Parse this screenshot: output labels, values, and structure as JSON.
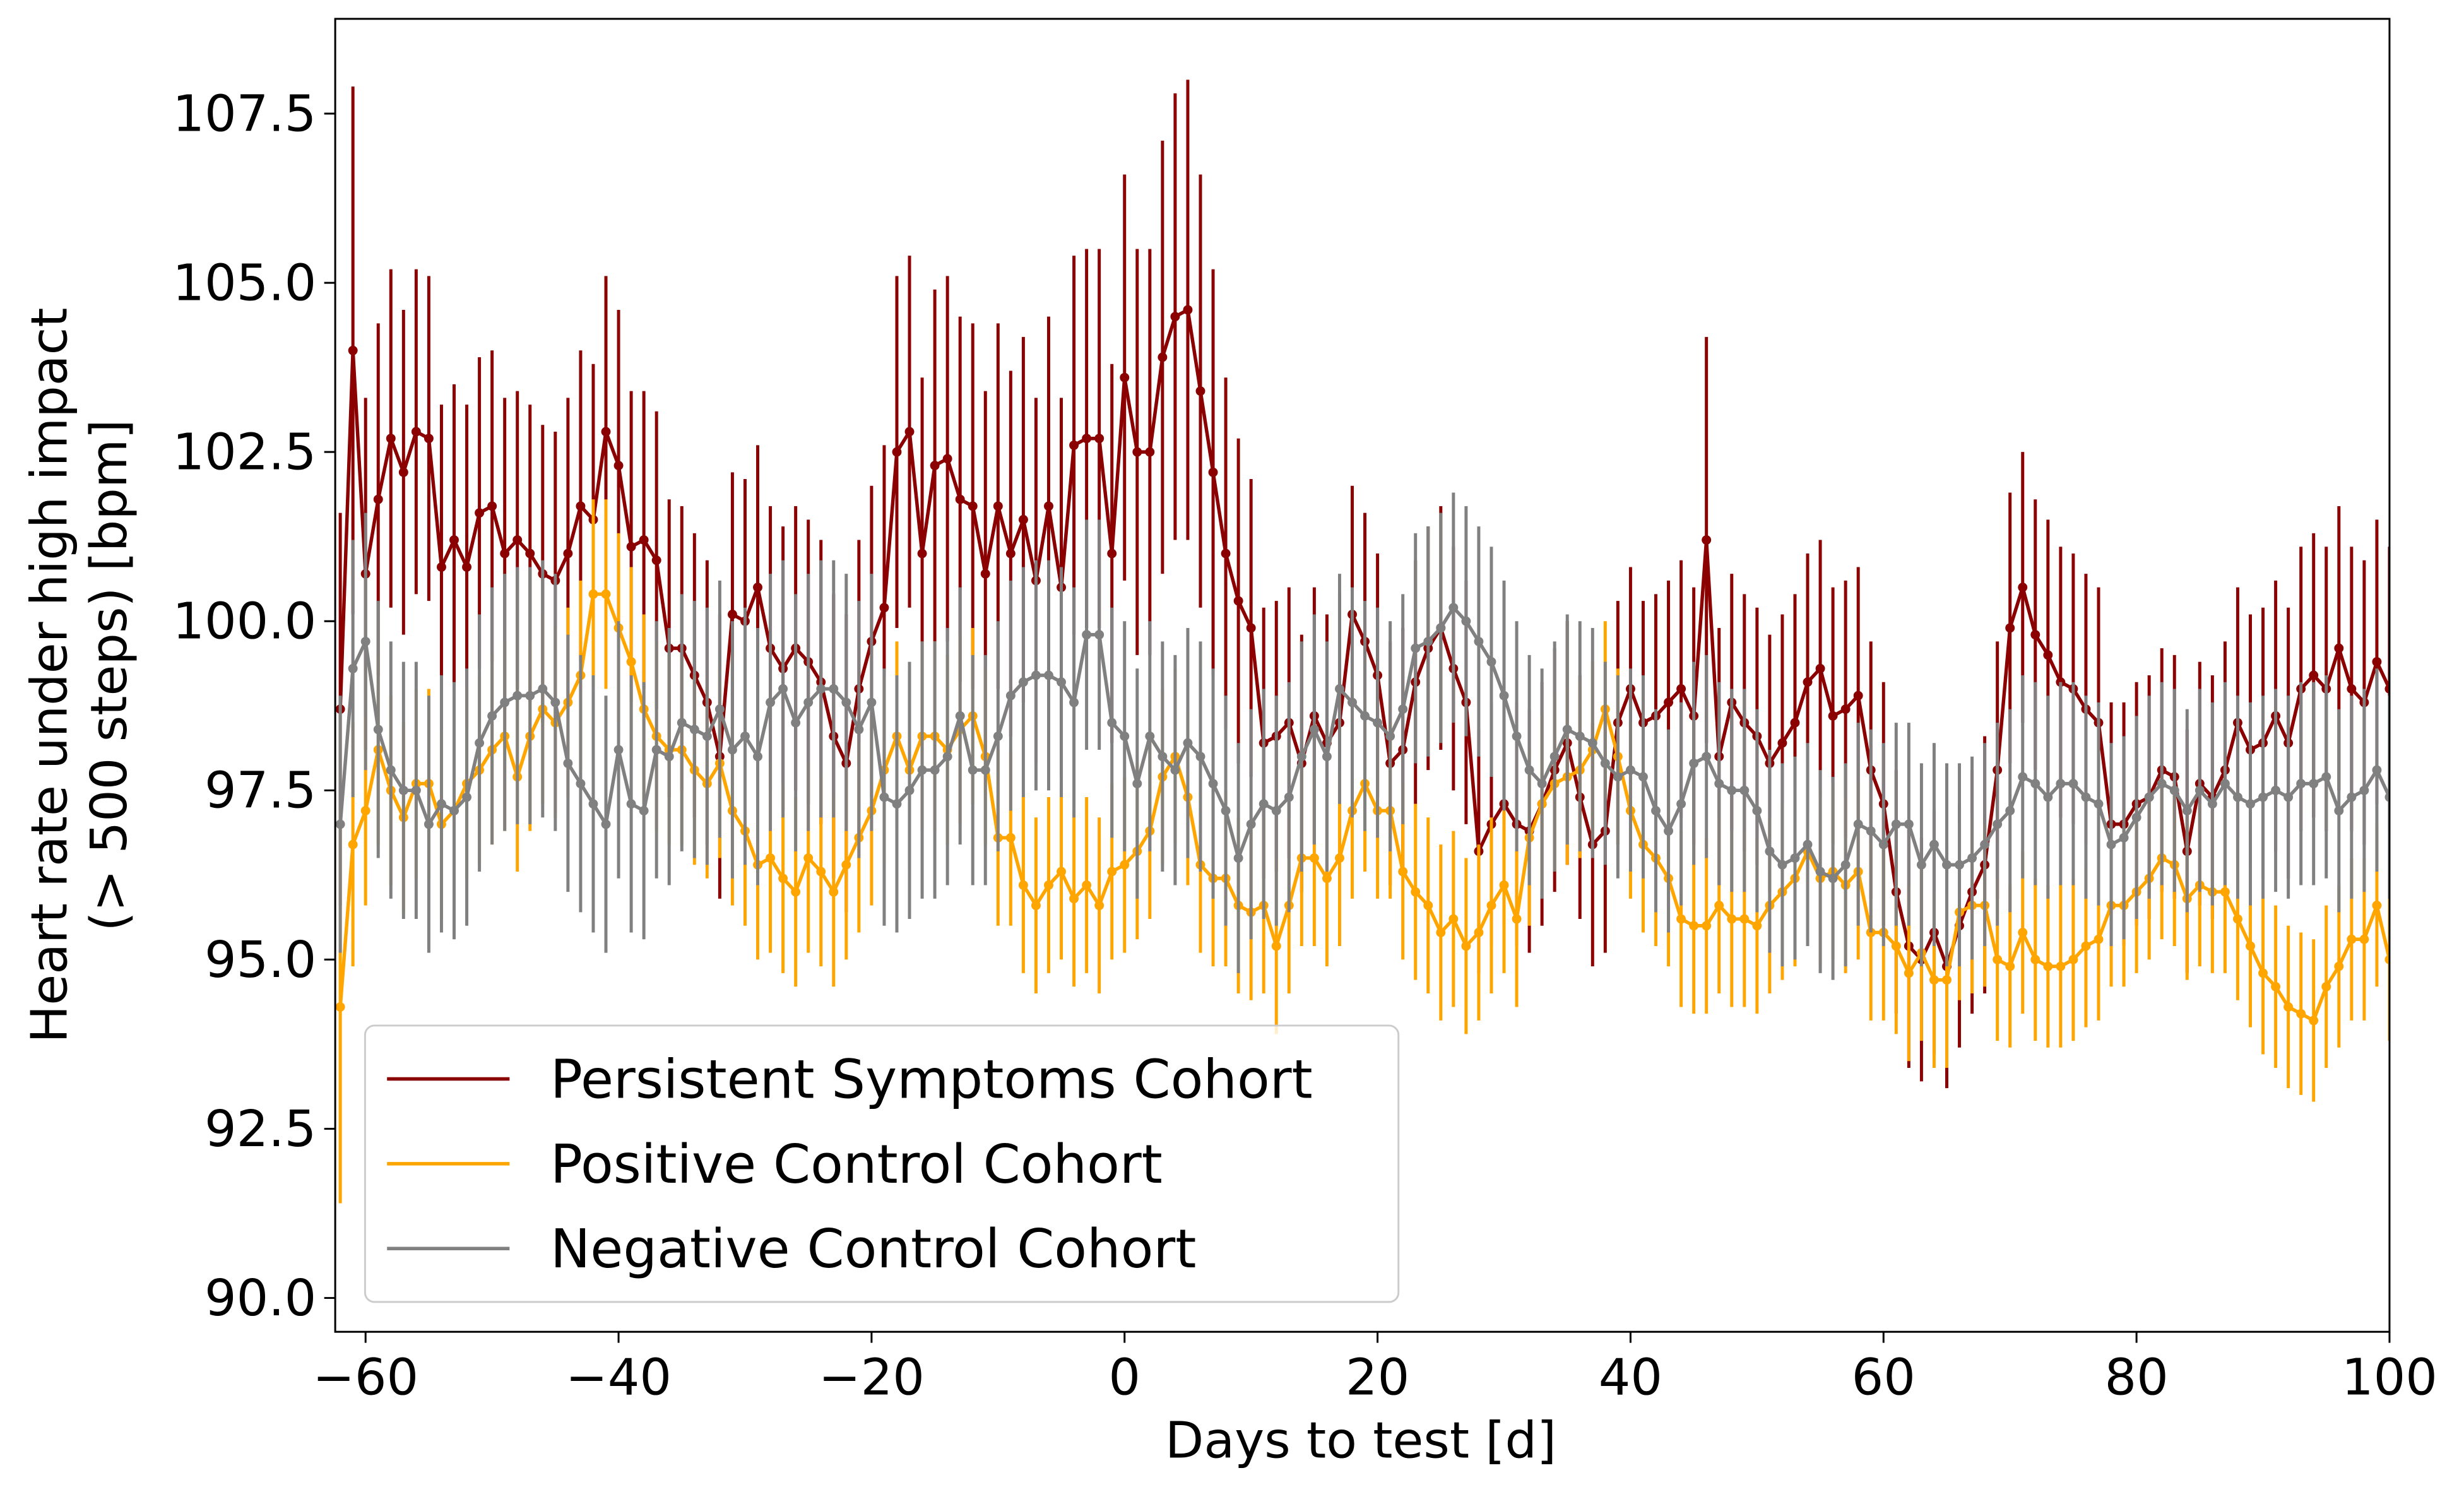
{
  "chart_data": {
    "type": "errorbar-line",
    "xlabel": "Days to test [d]",
    "ylabel": [
      "Heart rate under high impact",
      "(> 500 steps) [bpm]"
    ],
    "xlim": [
      -62.4,
      100
    ],
    "ylim": [
      89.5,
      108.9
    ],
    "xticks": [
      {
        "value": -60,
        "label": "−60"
      },
      {
        "value": -40,
        "label": "−40"
      },
      {
        "value": -20,
        "label": "−20"
      },
      0,
      20,
      40,
      60,
      80,
      100
    ],
    "yticks": [
      {
        "value": 90,
        "label": "90.0"
      },
      92.5,
      {
        "value": 95,
        "label": "95.0"
      },
      97.5,
      {
        "value": 100,
        "label": "100.0"
      },
      102.5,
      {
        "value": 105,
        "label": "105.0"
      },
      107.5
    ],
    "legend": "lower left",
    "x": [
      -62,
      -61,
      -60,
      -59,
      -58,
      -57,
      -56,
      -55,
      -54,
      -53,
      -52,
      -51,
      -50,
      -49,
      -48,
      -47,
      -46,
      -45,
      -44,
      -43,
      -42,
      -41,
      -40,
      -39,
      -38,
      -37,
      -36,
      -35,
      -34,
      -33,
      -32,
      -31,
      -30,
      -29,
      -28,
      -27,
      -26,
      -25,
      -24,
      -23,
      -22,
      -21,
      -20,
      -19,
      -18,
      -17,
      -16,
      -15,
      -14,
      -13,
      -12,
      -11,
      -10,
      -9,
      -8,
      -7,
      -6,
      -5,
      -4,
      -3,
      -2,
      -1,
      0,
      1,
      2,
      3,
      4,
      5,
      6,
      7,
      8,
      9,
      10,
      11,
      12,
      13,
      14,
      15,
      16,
      17,
      18,
      19,
      20,
      21,
      22,
      23,
      24,
      25,
      26,
      27,
      28,
      29,
      30,
      31,
      32,
      33,
      34,
      35,
      36,
      37,
      38,
      39,
      40,
      41,
      42,
      43,
      44,
      45,
      46,
      47,
      48,
      49,
      50,
      51,
      52,
      53,
      54,
      55,
      56,
      57,
      58,
      59,
      60,
      61,
      62,
      63,
      64,
      65,
      66,
      67,
      68,
      69,
      70,
      71,
      72,
      73,
      74,
      75,
      76,
      77,
      78,
      79,
      80,
      81,
      82,
      83,
      84,
      85,
      86,
      87,
      88,
      89,
      90,
      91,
      92,
      93,
      94,
      95,
      96,
      97,
      98,
      99,
      100
    ],
    "series": [
      {
        "name": "Persistent Symptoms Cohort",
        "color": "#8b0000",
        "values": [
          98.7,
          104.0,
          100.7,
          101.8,
          102.7,
          102.2,
          102.8,
          102.7,
          100.8,
          101.2,
          100.8,
          101.6,
          101.7,
          101.0,
          101.2,
          101.0,
          100.7,
          100.6,
          101.0,
          101.7,
          101.5,
          102.8,
          102.3,
          101.1,
          101.2,
          100.9,
          99.6,
          99.6,
          99.2,
          98.8,
          98.0,
          100.1,
          100.0,
          100.5,
          99.6,
          99.3,
          99.6,
          99.4,
          99.1,
          98.3,
          97.9,
          99.0,
          99.7,
          100.2,
          102.5,
          102.8,
          101.0,
          102.3,
          102.4,
          101.8,
          101.7,
          100.7,
          101.7,
          101.0,
          101.5,
          100.6,
          101.7,
          100.5,
          102.6,
          102.7,
          102.7,
          101.0,
          103.6,
          102.5,
          102.5,
          103.9,
          104.5,
          104.6,
          103.4,
          102.2,
          101.0,
          100.3,
          99.9,
          98.2,
          98.3,
          98.5,
          97.9,
          98.6,
          98.2,
          98.5,
          100.1,
          99.7,
          99.2,
          97.9,
          98.1,
          99.1,
          99.6,
          99.9,
          99.3,
          98.8,
          96.6,
          97.0,
          97.3,
          97.0,
          96.9,
          97.3,
          97.8,
          98.2,
          97.4,
          96.7,
          96.9,
          98.5,
          99.0,
          98.5,
          98.6,
          98.8,
          99.0,
          98.6,
          101.2,
          98.0,
          98.8,
          98.5,
          98.3,
          97.9,
          98.2,
          98.5,
          99.1,
          99.3,
          98.6,
          98.7,
          98.9,
          97.8,
          97.3,
          96.0,
          95.2,
          95.0,
          95.4,
          94.9,
          95.5,
          96.0,
          96.4,
          97.8,
          99.9,
          100.5,
          99.8,
          99.5,
          99.1,
          99.0,
          98.7,
          98.5,
          97.0,
          97.0,
          97.3,
          97.4,
          97.8,
          97.7,
          96.6,
          97.6,
          97.4,
          97.8,
          98.5,
          98.1,
          98.2,
          98.6,
          98.2,
          99.0,
          99.2,
          99.0,
          99.6,
          99.0,
          98.8,
          99.4,
          99.0
        ],
        "errors": [
          2.9,
          3.9,
          2.6,
          2.6,
          2.5,
          2.4,
          2.4,
          2.4,
          2.4,
          2.3,
          2.4,
          2.3,
          2.3,
          2.3,
          2.2,
          2.2,
          2.2,
          2.2,
          2.3,
          2.3,
          2.3,
          2.3,
          2.3,
          2.3,
          2.2,
          2.2,
          2.2,
          2.1,
          2.1,
          2.1,
          2.1,
          2.1,
          2.1,
          2.1,
          2.1,
          2.1,
          2.1,
          2.1,
          2.1,
          2.1,
          2.2,
          2.2,
          2.3,
          2.4,
          2.6,
          2.6,
          2.6,
          2.6,
          2.7,
          2.7,
          2.7,
          2.7,
          2.7,
          2.7,
          2.7,
          2.7,
          2.8,
          2.8,
          2.8,
          2.8,
          2.8,
          2.8,
          3.0,
          3.0,
          3.0,
          3.2,
          3.3,
          3.4,
          3.2,
          3.0,
          2.6,
          2.4,
          2.2,
          2.0,
          2.0,
          2.0,
          1.9,
          1.9,
          1.9,
          1.9,
          1.9,
          1.9,
          1.8,
          1.8,
          1.8,
          1.8,
          1.8,
          1.8,
          1.8,
          1.8,
          1.8,
          1.8,
          1.8,
          1.8,
          1.8,
          1.8,
          1.8,
          1.8,
          1.8,
          1.8,
          1.8,
          1.8,
          1.8,
          1.8,
          1.8,
          1.8,
          1.9,
          1.9,
          3.0,
          1.9,
          1.9,
          1.9,
          1.9,
          1.9,
          1.9,
          1.9,
          1.9,
          1.9,
          1.9,
          1.9,
          1.9,
          1.9,
          1.8,
          1.8,
          1.8,
          1.8,
          1.8,
          1.8,
          1.8,
          1.8,
          1.9,
          1.9,
          2.0,
          2.0,
          2.0,
          2.0,
          2.0,
          2.0,
          2.0,
          2.0,
          1.8,
          1.8,
          1.8,
          1.8,
          1.8,
          1.8,
          1.8,
          1.8,
          1.8,
          1.9,
          2.0,
          2.0,
          2.0,
          2.0,
          2.0,
          2.1,
          2.1,
          2.1,
          2.1,
          2.1,
          2.1,
          2.1,
          2.1
        ]
      },
      {
        "name": "Positive Control Cohort",
        "color": "#ffa500",
        "values": [
          94.3,
          96.7,
          97.2,
          98.1,
          97.5,
          97.1,
          97.6,
          97.6,
          97.0,
          97.2,
          97.6,
          97.8,
          98.1,
          98.3,
          97.7,
          98.3,
          98.7,
          98.5,
          98.8,
          99.2,
          100.4,
          100.4,
          99.9,
          99.4,
          98.7,
          98.3,
          98.1,
          98.1,
          97.8,
          97.6,
          97.9,
          97.2,
          96.9,
          96.4,
          96.5,
          96.2,
          96.0,
          96.5,
          96.3,
          96.0,
          96.4,
          96.8,
          97.2,
          97.8,
          98.3,
          97.8,
          98.3,
          98.3,
          98.1,
          98.4,
          98.6,
          98.0,
          96.8,
          96.8,
          96.1,
          95.8,
          96.1,
          96.3,
          95.9,
          96.1,
          95.8,
          96.3,
          96.4,
          96.6,
          96.9,
          97.7,
          98.0,
          97.4,
          96.4,
          96.2,
          96.2,
          95.8,
          95.7,
          95.8,
          95.2,
          95.8,
          96.5,
          96.5,
          96.2,
          96.5,
          97.2,
          97.6,
          97.2,
          97.2,
          96.3,
          96.0,
          95.8,
          95.4,
          95.6,
          95.2,
          95.4,
          95.8,
          96.1,
          95.6,
          96.8,
          97.3,
          97.6,
          97.7,
          97.8,
          98.1,
          98.7,
          98.0,
          97.2,
          96.7,
          96.5,
          96.2,
          95.6,
          95.5,
          95.5,
          95.8,
          95.6,
          95.6,
          95.5,
          95.8,
          96.0,
          96.2,
          96.6,
          96.2,
          96.3,
          96.1,
          96.3,
          95.4,
          95.4,
          95.2,
          94.8,
          95.1,
          94.7,
          94.7,
          95.7,
          95.8,
          95.8,
          95.0,
          94.9,
          95.4,
          95.0,
          94.9,
          94.9,
          95.0,
          95.2,
          95.3,
          95.8,
          95.8,
          96.0,
          96.2,
          96.5,
          96.4,
          95.9,
          96.1,
          96.0,
          96.0,
          95.6,
          95.2,
          94.8,
          94.6,
          94.3,
          94.2,
          94.1,
          94.6,
          94.9,
          95.3,
          95.3,
          95.8,
          95.0
        ],
        "errors": [
          2.9,
          1.8,
          1.4,
          1.4,
          1.4,
          1.4,
          1.4,
          1.4,
          1.4,
          1.4,
          1.4,
          1.4,
          1.4,
          1.4,
          1.4,
          1.4,
          1.4,
          1.4,
          1.4,
          1.4,
          1.4,
          1.4,
          1.4,
          1.4,
          1.4,
          1.4,
          1.4,
          1.4,
          1.4,
          1.4,
          1.4,
          1.4,
          1.4,
          1.4,
          1.4,
          1.4,
          1.4,
          1.4,
          1.4,
          1.4,
          1.4,
          1.4,
          1.4,
          1.4,
          1.4,
          1.4,
          1.4,
          1.4,
          1.4,
          1.4,
          1.3,
          1.3,
          1.3,
          1.3,
          1.3,
          1.3,
          1.3,
          1.3,
          1.3,
          1.3,
          1.3,
          1.3,
          1.3,
          1.3,
          1.3,
          1.3,
          1.3,
          1.3,
          1.3,
          1.3,
          1.3,
          1.3,
          1.3,
          1.3,
          1.3,
          1.3,
          1.3,
          1.3,
          1.3,
          1.3,
          1.3,
          1.3,
          1.3,
          1.3,
          1.3,
          1.3,
          1.3,
          1.3,
          1.3,
          1.3,
          1.3,
          1.3,
          1.3,
          1.3,
          1.3,
          1.3,
          1.3,
          1.3,
          1.3,
          1.3,
          1.3,
          1.3,
          1.3,
          1.3,
          1.3,
          1.3,
          1.3,
          1.3,
          1.3,
          1.3,
          1.3,
          1.3,
          1.3,
          1.3,
          1.3,
          1.3,
          1.3,
          1.3,
          1.3,
          1.3,
          1.3,
          1.3,
          1.3,
          1.3,
          1.3,
          1.3,
          1.3,
          1.3,
          1.3,
          1.3,
          1.2,
          1.2,
          1.2,
          1.2,
          1.2,
          1.2,
          1.2,
          1.2,
          1.2,
          1.2,
          1.2,
          1.2,
          1.2,
          1.2,
          1.2,
          1.2,
          1.2,
          1.2,
          1.2,
          1.2,
          1.2,
          1.2,
          1.2,
          1.2,
          1.2,
          1.2,
          1.2,
          1.2,
          1.2,
          1.2,
          1.2,
          1.2,
          1.2
        ]
      },
      {
        "name": "Negative Control Cohort",
        "color": "#808080",
        "values": [
          97.0,
          99.3,
          99.7,
          98.4,
          97.8,
          97.5,
          97.5,
          97.0,
          97.3,
          97.2,
          97.4,
          98.2,
          98.6,
          98.8,
          98.9,
          98.9,
          99.0,
          98.8,
          97.9,
          97.6,
          97.3,
          97.0,
          98.1,
          97.3,
          97.2,
          98.1,
          98.0,
          98.5,
          98.4,
          98.3,
          98.7,
          98.1,
          98.3,
          98.0,
          98.8,
          99.0,
          98.5,
          98.8,
          99.0,
          99.0,
          98.8,
          98.4,
          98.8,
          97.4,
          97.3,
          97.5,
          97.8,
          97.8,
          98.0,
          98.6,
          97.8,
          97.8,
          98.3,
          98.9,
          99.1,
          99.2,
          99.2,
          99.1,
          98.8,
          99.8,
          99.8,
          98.5,
          98.3,
          97.6,
          98.3,
          98.0,
          97.8,
          98.2,
          98.0,
          97.6,
          97.2,
          96.5,
          97.0,
          97.3,
          97.2,
          97.4,
          98.0,
          98.4,
          98.0,
          99.0,
          98.8,
          98.6,
          98.5,
          98.3,
          98.7,
          99.6,
          99.7,
          99.9,
          100.2,
          100.0,
          99.7,
          99.4,
          98.9,
          98.3,
          97.8,
          97.6,
          98.0,
          98.4,
          98.3,
          98.2,
          97.9,
          97.7,
          97.8,
          97.7,
          97.2,
          96.9,
          97.3,
          97.9,
          98.0,
          97.6,
          97.5,
          97.5,
          97.2,
          96.6,
          96.4,
          96.5,
          96.7,
          96.3,
          96.2,
          96.4,
          97.0,
          96.9,
          96.7,
          97.0,
          97.0,
          96.4,
          96.7,
          96.4,
          96.4,
          96.5,
          96.7,
          97.0,
          97.2,
          97.7,
          97.6,
          97.4,
          97.6,
          97.6,
          97.4,
          97.3,
          96.7,
          96.8,
          97.1,
          97.4,
          97.6,
          97.5,
          97.2,
          97.5,
          97.3,
          97.6,
          97.4,
          97.3,
          97.4,
          97.5,
          97.4,
          97.6,
          97.6,
          97.7,
          97.2,
          97.4,
          97.5,
          97.8,
          97.4
        ],
        "errors": [
          1.9,
          1.9,
          1.9,
          1.9,
          1.9,
          1.9,
          1.9,
          1.9,
          1.9,
          1.9,
          1.9,
          1.9,
          1.9,
          1.9,
          1.9,
          1.9,
          1.9,
          1.9,
          1.9,
          1.9,
          1.9,
          1.9,
          1.9,
          1.9,
          1.9,
          1.9,
          1.9,
          1.9,
          1.9,
          1.9,
          1.9,
          1.9,
          1.9,
          1.9,
          1.9,
          1.9,
          1.9,
          1.9,
          1.9,
          1.9,
          1.9,
          1.9,
          1.9,
          1.9,
          1.9,
          1.9,
          1.9,
          1.9,
          1.9,
          1.9,
          1.7,
          1.7,
          1.7,
          1.7,
          1.7,
          1.7,
          1.7,
          1.7,
          1.7,
          1.7,
          1.7,
          1.7,
          1.7,
          1.7,
          1.7,
          1.7,
          1.7,
          1.7,
          1.7,
          1.7,
          1.7,
          1.7,
          1.7,
          1.7,
          1.7,
          1.7,
          1.7,
          1.7,
          1.7,
          1.7,
          1.7,
          1.7,
          1.7,
          1.7,
          1.7,
          1.7,
          1.7,
          1.7,
          1.7,
          1.7,
          1.7,
          1.7,
          1.7,
          1.7,
          1.7,
          1.7,
          1.7,
          1.7,
          1.7,
          1.7,
          1.5,
          1.5,
          1.5,
          1.5,
          1.5,
          1.5,
          1.5,
          1.5,
          1.5,
          1.5,
          1.5,
          1.5,
          1.5,
          1.5,
          1.5,
          1.5,
          1.5,
          1.5,
          1.5,
          1.5,
          1.5,
          1.5,
          1.5,
          1.5,
          1.5,
          1.5,
          1.5,
          1.5,
          1.5,
          1.5,
          1.5,
          1.5,
          1.5,
          1.5,
          1.5,
          1.5,
          1.5,
          1.5,
          1.5,
          1.5,
          1.5,
          1.5,
          1.5,
          1.5,
          1.5,
          1.5,
          1.5,
          1.5,
          1.5,
          1.5,
          1.5,
          1.5,
          1.5,
          1.5,
          1.5,
          1.5,
          1.5,
          1.5,
          1.5,
          1.5,
          1.5,
          1.5,
          1.5
        ]
      }
    ]
  }
}
